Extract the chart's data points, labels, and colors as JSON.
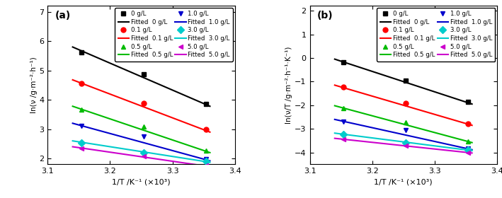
{
  "panel_a": {
    "title": "(a)",
    "xlabel": "1/T /K⁻¹ (×10³)",
    "ylabel": "ln(ν /g·m⁻²·h⁻¹)",
    "xlim": [
      3.1,
      3.4
    ],
    "ylim": [
      1.8,
      7.2
    ],
    "yticks": [
      2,
      3,
      4,
      5,
      6,
      7
    ],
    "xticks": [
      3.1,
      3.2,
      3.3,
      3.4
    ],
    "series": [
      {
        "label": "0 g/L",
        "color": "black",
        "marker": "s",
        "x_data": [
          3.154,
          3.254,
          3.354
        ],
        "y_data": [
          5.62,
          4.88,
          3.85
        ],
        "fit_x": [
          3.14,
          3.36
        ],
        "fit_y": [
          5.8,
          3.78
        ]
      },
      {
        "label": "0.1 g/L",
        "color": "red",
        "marker": "o",
        "x_data": [
          3.154,
          3.254,
          3.354
        ],
        "y_data": [
          4.56,
          3.88,
          2.98
        ],
        "fit_x": [
          3.14,
          3.36
        ],
        "fit_y": [
          4.68,
          2.9
        ]
      },
      {
        "label": "0.5 g/L",
        "color": "#00bb00",
        "marker": "^",
        "x_data": [
          3.154,
          3.254,
          3.354
        ],
        "y_data": [
          3.67,
          3.08,
          2.27
        ],
        "fit_x": [
          3.14,
          3.36
        ],
        "fit_y": [
          3.78,
          2.2
        ]
      },
      {
        "label": "1.0 g/L",
        "color": "#0000cc",
        "marker": "v",
        "x_data": [
          3.154,
          3.254,
          3.354
        ],
        "y_data": [
          3.1,
          2.75,
          1.97
        ],
        "fit_x": [
          3.14,
          3.36
        ],
        "fit_y": [
          3.2,
          1.92
        ]
      },
      {
        "label": "3.0 g/L",
        "color": "#00cccc",
        "marker": "D",
        "x_data": [
          3.154,
          3.254,
          3.354
        ],
        "y_data": [
          2.54,
          2.2,
          1.9
        ],
        "fit_x": [
          3.14,
          3.36
        ],
        "fit_y": [
          2.6,
          1.87
        ]
      },
      {
        "label": "5.0 g/L",
        "color": "#cc00cc",
        "marker": "<",
        "x_data": [
          3.154,
          3.254,
          3.354
        ],
        "y_data": [
          2.35,
          2.08,
          1.76
        ],
        "fit_x": [
          3.14,
          3.36
        ],
        "fit_y": [
          2.4,
          1.72
        ]
      }
    ]
  },
  "panel_b": {
    "title": "(b)",
    "xlabel": "1/T /K⁻¹ (×10³)",
    "ylabel": "ln(ν/T /g·m⁻²·h⁻¹·K⁻¹)",
    "xlim": [
      3.1,
      3.4
    ],
    "ylim": [
      -4.5,
      2.2
    ],
    "yticks": [
      -4,
      -3,
      -2,
      -1,
      0,
      1,
      2
    ],
    "xticks": [
      3.1,
      3.2,
      3.3,
      3.4
    ],
    "series": [
      {
        "label": "0 g/L",
        "color": "black",
        "marker": "s",
        "x_data": [
          3.154,
          3.254,
          3.354
        ],
        "y_data": [
          -0.17,
          -0.95,
          -1.85
        ],
        "fit_x": [
          3.14,
          3.36
        ],
        "fit_y": [
          -0.05,
          -1.95
        ]
      },
      {
        "label": "0.1 g/L",
        "color": "red",
        "marker": "o",
        "x_data": [
          3.154,
          3.254,
          3.354
        ],
        "y_data": [
          -1.24,
          -1.92,
          -2.78
        ],
        "fit_x": [
          3.14,
          3.36
        ],
        "fit_y": [
          -1.15,
          -2.85
        ]
      },
      {
        "label": "0.5 g/L",
        "color": "#00bb00",
        "marker": "^",
        "x_data": [
          3.154,
          3.254,
          3.354
        ],
        "y_data": [
          -2.12,
          -2.71,
          -3.52
        ],
        "fit_x": [
          3.14,
          3.36
        ],
        "fit_y": [
          -2.02,
          -3.58
        ]
      },
      {
        "label": "1.0 g/L",
        "color": "#0000cc",
        "marker": "v",
        "x_data": [
          3.154,
          3.254,
          3.354
        ],
        "y_data": [
          -2.68,
          -3.05,
          -3.82
        ],
        "fit_x": [
          3.14,
          3.36
        ],
        "fit_y": [
          -2.6,
          -3.88
        ]
      },
      {
        "label": "3.0 g/L",
        "color": "#00cccc",
        "marker": "D",
        "x_data": [
          3.154,
          3.254,
          3.354
        ],
        "y_data": [
          -3.23,
          -3.58,
          -3.88
        ],
        "fit_x": [
          3.14,
          3.36
        ],
        "fit_y": [
          -3.18,
          -3.92
        ]
      },
      {
        "label": "5.0 g/L",
        "color": "#cc00cc",
        "marker": "<",
        "x_data": [
          3.154,
          3.254,
          3.354
        ],
        "y_data": [
          -3.44,
          -3.72,
          -4.0
        ],
        "fit_x": [
          3.14,
          3.36
        ],
        "fit_y": [
          -3.4,
          -4.02
        ]
      }
    ]
  }
}
